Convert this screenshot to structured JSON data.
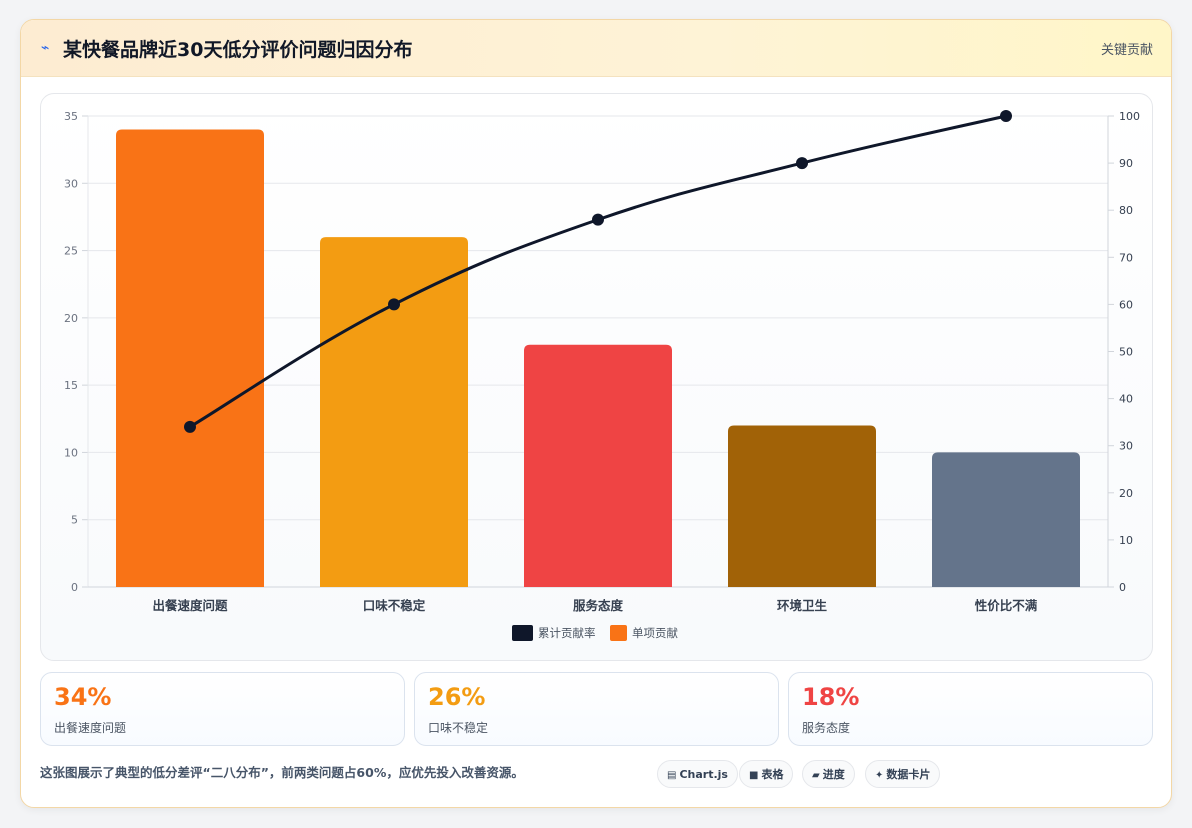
{
  "header": {
    "title": "某快餐品牌近30天低分评价问题归因分布",
    "tag": "关键贡献"
  },
  "chart_data": {
    "type": "bar",
    "categories": [
      "出餐速度问题",
      "口味不稳定",
      "服务态度",
      "环境卫生",
      "性价比不满"
    ],
    "series": [
      {
        "name": "单项贡献",
        "type": "bar",
        "values": [
          34,
          26,
          18,
          12,
          10
        ],
        "colors": [
          "#f97316",
          "#f39c12",
          "#ef4444",
          "#a16207",
          "#64748b"
        ]
      },
      {
        "name": "累计贡献率",
        "type": "line",
        "values": [
          34,
          60,
          78,
          90,
          100
        ],
        "color": "#0f172a",
        "axis": "right"
      }
    ],
    "ylim": [
      0,
      35
    ],
    "y_ticks": [
      0,
      5,
      10,
      15,
      20,
      25,
      30,
      35
    ],
    "y2lim": [
      0,
      100
    ],
    "y2_ticks": [
      0,
      10,
      20,
      30,
      40,
      50,
      60,
      70,
      80,
      90,
      100
    ],
    "legend_position": "bottom",
    "grid": true
  },
  "stats": [
    {
      "value": "34%",
      "label": "出餐速度问题",
      "color": "#f97316"
    },
    {
      "value": "26%",
      "label": "口味不稳定",
      "color": "#f39c12"
    },
    {
      "value": "18%",
      "label": "服务态度",
      "color": "#ef4444"
    }
  ],
  "footer": {
    "note": "这张图展示了典型的低分差评“二八分布”，前两类问题占60%，应优先投入改善资源。",
    "chips": [
      {
        "icon": "table-icon",
        "label": "Chart.js"
      },
      {
        "icon": "grid-icon",
        "label": "表格"
      },
      {
        "icon": "folder-icon",
        "label": "进度"
      },
      {
        "icon": "sparkle-icon",
        "label": "数据卡片"
      }
    ]
  }
}
